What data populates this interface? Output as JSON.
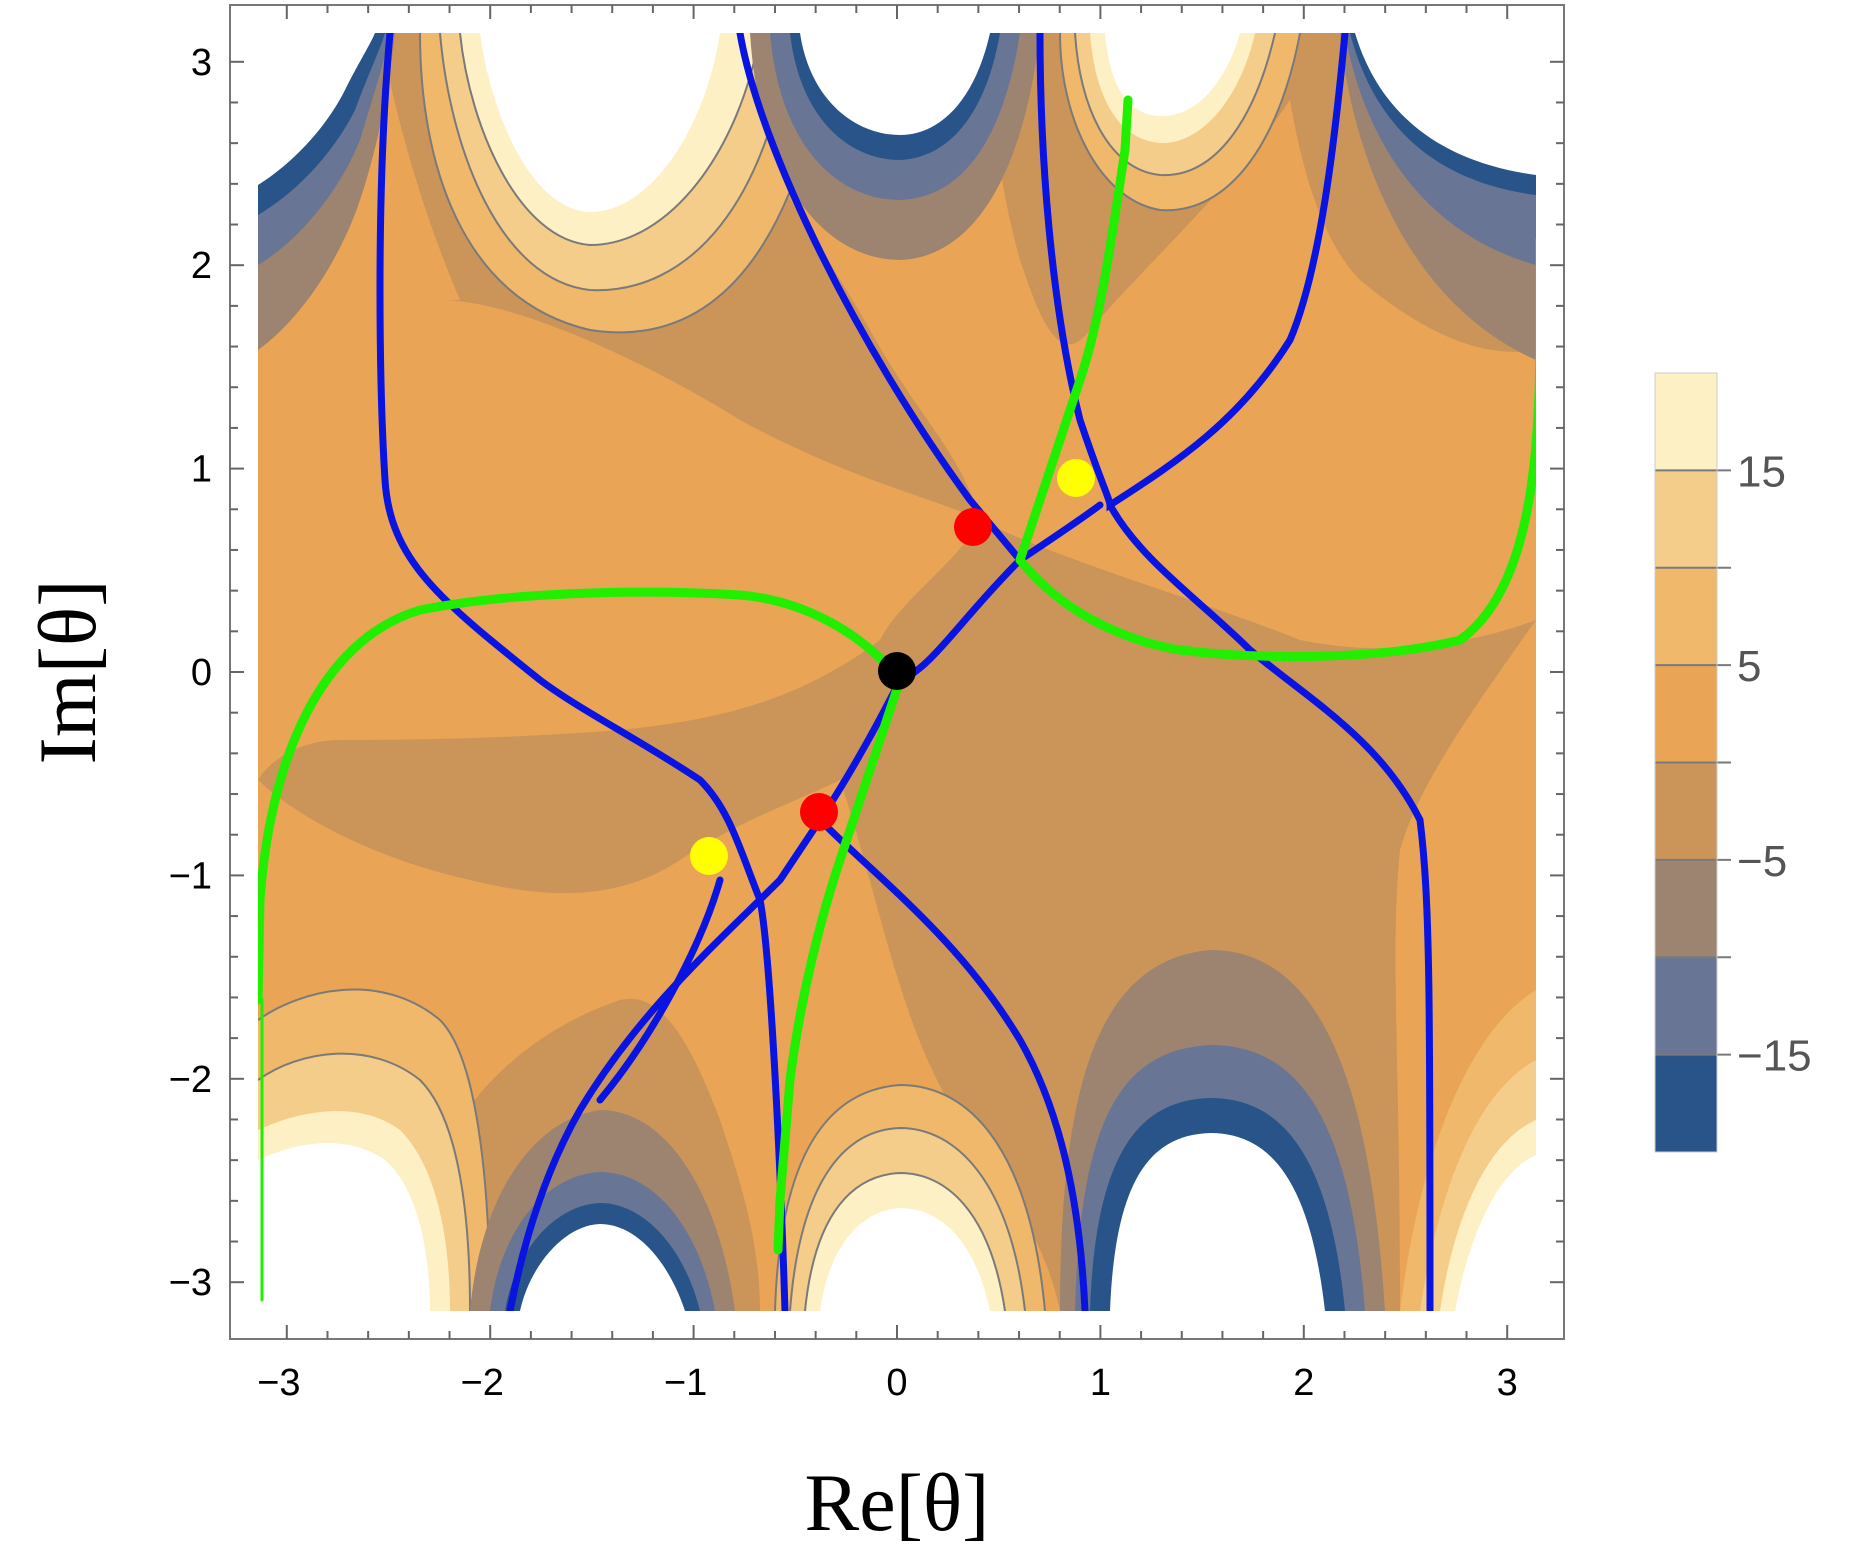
{
  "chart_data": {
    "type": "contour",
    "xlabel": "Re[θ]",
    "ylabel": "Im[θ]",
    "xlim": [
      -3.14159,
      3.14159
    ],
    "ylim": [
      -3.14159,
      3.14159
    ],
    "x_ticks": [
      "−3",
      "−2",
      "−1",
      "0",
      "1",
      "2",
      "3"
    ],
    "x_tick_values": [
      -3,
      -2,
      -1,
      0,
      1,
      2,
      3
    ],
    "y_ticks": [
      "−3",
      "−2",
      "−1",
      "0",
      "1",
      "2",
      "3"
    ],
    "y_tick_values": [
      -3,
      -2,
      -1,
      0,
      1,
      2,
      3
    ],
    "colorbar": {
      "labels": [
        "15",
        "5",
        "−5",
        "−15"
      ],
      "label_values": [
        15,
        5,
        -5,
        -15
      ],
      "band_edges": [
        20,
        15,
        10,
        5,
        0,
        -5,
        -10,
        -15,
        -20
      ],
      "band_colors": [
        "#fdf0c4",
        "#f5cd8a",
        "#f0b86b",
        "#e9a555",
        "#cb955a",
        "#9d8471",
        "#687594",
        "#285489"
      ]
    },
    "points": {
      "black": [
        [
          0,
          0
        ]
      ],
      "red": [
        [
          0.41,
          0.71
        ],
        [
          -0.41,
          -0.71
        ]
      ],
      "yellow": [
        [
          0.96,
          0.92
        ],
        [
          -0.96,
          -0.92
        ]
      ]
    },
    "colors": {
      "black_point": "#000000",
      "red_point": "#ff0000",
      "yellow_point": "#ffff00",
      "blue_curves": "#0a14e0",
      "green_curves": "#22ee00"
    }
  }
}
